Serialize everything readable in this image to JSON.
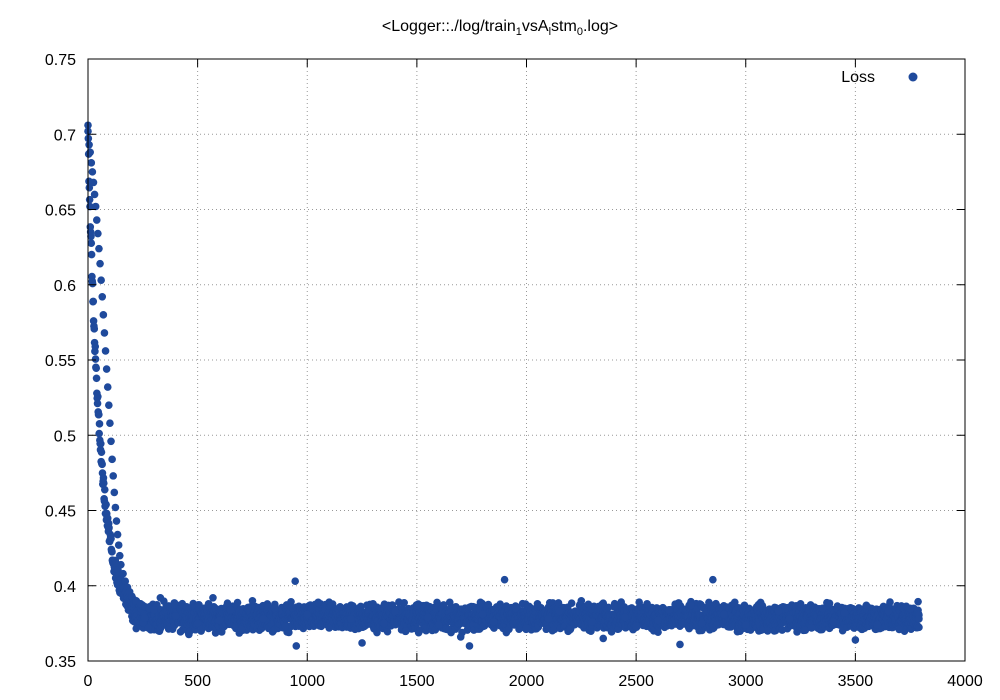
{
  "chart_data": {
    "type": "scatter",
    "title": {
      "prefix": "<Logger::./log/train",
      "sub1": "1",
      "mid": "vsA",
      "sub2": "l",
      "mid2": "stm",
      "sub3": "0",
      "suffix": ".log>"
    },
    "xlabel": "",
    "ylabel": "",
    "xlim": [
      0,
      4000
    ],
    "ylim": [
      0.35,
      0.75
    ],
    "xticks": [
      0,
      500,
      1000,
      1500,
      2000,
      2500,
      3000,
      3500,
      4000
    ],
    "yticks": [
      0.35,
      0.4,
      0.45,
      0.5,
      0.55,
      0.6,
      0.65,
      0.7,
      0.75
    ],
    "ytick_labels": [
      "0.35",
      "0.4",
      "0.45",
      "0.5",
      "0.55",
      "0.6",
      "0.65",
      "0.7",
      "0.75"
    ],
    "grid": true,
    "legend_position": "top-right",
    "color": "#1f4a9c",
    "series": [
      {
        "name": "Loss",
        "points": [
          [
            0,
            0.702
          ],
          [
            5,
            0.693
          ],
          [
            10,
            0.688
          ],
          [
            15,
            0.681
          ],
          [
            20,
            0.675
          ],
          [
            25,
            0.668
          ],
          [
            30,
            0.66
          ],
          [
            35,
            0.652
          ],
          [
            40,
            0.643
          ],
          [
            45,
            0.634
          ],
          [
            50,
            0.624
          ],
          [
            55,
            0.614
          ],
          [
            60,
            0.603
          ],
          [
            65,
            0.592
          ],
          [
            70,
            0.58
          ],
          [
            75,
            0.568
          ],
          [
            80,
            0.556
          ],
          [
            85,
            0.544
          ],
          [
            90,
            0.532
          ],
          [
            95,
            0.52
          ],
          [
            100,
            0.508
          ],
          [
            105,
            0.496
          ],
          [
            110,
            0.484
          ],
          [
            115,
            0.473
          ],
          [
            120,
            0.462
          ],
          [
            125,
            0.452
          ],
          [
            130,
            0.443
          ],
          [
            135,
            0.434
          ],
          [
            140,
            0.427
          ],
          [
            145,
            0.42
          ],
          [
            150,
            0.414
          ],
          [
            160,
            0.408
          ],
          [
            170,
            0.403
          ],
          [
            180,
            0.399
          ],
          [
            190,
            0.396
          ],
          [
            200,
            0.393
          ],
          [
            220,
            0.39
          ],
          [
            240,
            0.388
          ],
          [
            260,
            0.386
          ],
          [
            280,
            0.385
          ],
          [
            300,
            0.384
          ],
          [
            275,
            0.372
          ],
          [
            330,
            0.392
          ],
          [
            400,
            0.38
          ],
          [
            450,
            0.386
          ],
          [
            500,
            0.375
          ],
          [
            550,
            0.388
          ],
          [
            570,
            0.392
          ],
          [
            600,
            0.377
          ],
          [
            650,
            0.384
          ],
          [
            700,
            0.371
          ],
          [
            750,
            0.39
          ],
          [
            800,
            0.378
          ],
          [
            850,
            0.385
          ],
          [
            900,
            0.373
          ],
          [
            945,
            0.403
          ],
          [
            950,
            0.36
          ],
          [
            1000,
            0.381
          ],
          [
            1050,
            0.389
          ],
          [
            1100,
            0.372
          ],
          [
            1150,
            0.386
          ],
          [
            1200,
            0.378
          ],
          [
            1250,
            0.362
          ],
          [
            1300,
            0.388
          ],
          [
            1350,
            0.375
          ],
          [
            1400,
            0.383
          ],
          [
            1450,
            0.37
          ],
          [
            1500,
            0.387
          ],
          [
            1550,
            0.379
          ],
          [
            1600,
            0.374
          ],
          [
            1650,
            0.389
          ],
          [
            1700,
            0.366
          ],
          [
            1740,
            0.36
          ],
          [
            1800,
            0.381
          ],
          [
            1850,
            0.376
          ],
          [
            1900,
            0.404
          ],
          [
            1950,
            0.385
          ],
          [
            2000,
            0.372
          ],
          [
            2050,
            0.388
          ],
          [
            2100,
            0.378
          ],
          [
            2150,
            0.383
          ],
          [
            2200,
            0.371
          ],
          [
            2250,
            0.39
          ],
          [
            2300,
            0.376
          ],
          [
            2350,
            0.365
          ],
          [
            2400,
            0.386
          ],
          [
            2450,
            0.379
          ],
          [
            2500,
            0.373
          ],
          [
            2550,
            0.388
          ],
          [
            2600,
            0.377
          ],
          [
            2650,
            0.384
          ],
          [
            2700,
            0.361
          ],
          [
            2750,
            0.387
          ],
          [
            2800,
            0.375
          ],
          [
            2850,
            0.404
          ],
          [
            2900,
            0.381
          ],
          [
            2950,
            0.389
          ],
          [
            3000,
            0.374
          ],
          [
            3050,
            0.386
          ],
          [
            3100,
            0.37
          ],
          [
            3150,
            0.383
          ],
          [
            3200,
            0.378
          ],
          [
            3250,
            0.388
          ],
          [
            3300,
            0.372
          ],
          [
            3350,
            0.385
          ],
          [
            3400,
            0.376
          ],
          [
            3450,
            0.382
          ],
          [
            3500,
            0.364
          ],
          [
            3550,
            0.387
          ],
          [
            3600,
            0.374
          ],
          [
            3650,
            0.383
          ],
          [
            3700,
            0.371
          ],
          [
            3750,
            0.385
          ],
          [
            3790,
            0.378
          ]
        ]
      }
    ],
    "noise_band": {
      "x_start": 200,
      "x_end": 3790,
      "y_center": 0.379,
      "y_spread": 0.012
    }
  }
}
